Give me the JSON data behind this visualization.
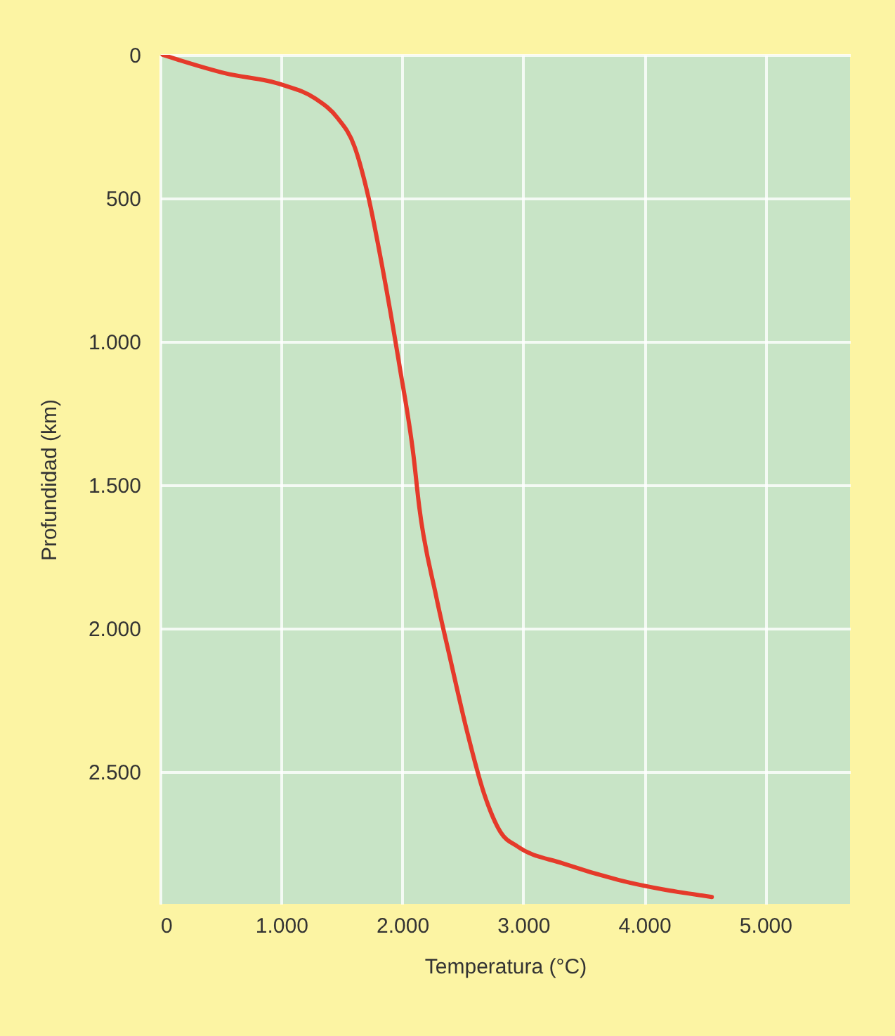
{
  "chart_data": {
    "type": "line",
    "xlabel": "Temperatura (°C)",
    "ylabel": "Profundidad (km)",
    "x": [
      20,
      535,
      1000,
      1280,
      1465,
      1605,
      1720,
      1840,
      1977,
      2093,
      2140,
      2280,
      2395,
      2535,
      2675,
      2814,
      2953,
      3326,
      3790,
      4558
    ],
    "series": [
      {
        "color": "#e53a2a",
        "values": [
          0,
          64,
          103,
          152,
          220,
          319,
          495,
          750,
          1083,
          1397,
          1574,
          1887,
          2103,
          2358,
          2574,
          2711,
          2760,
          2819,
          2877,
          2936
        ]
      }
    ],
    "xlim": [
      0,
      5700
    ],
    "ylim": [
      2960,
      0
    ],
    "xticks": [
      0,
      {
        "value": 1000,
        "label": "1.000"
      },
      {
        "value": 2000,
        "label": "2.000"
      },
      {
        "value": 3000,
        "label": "3.000"
      },
      {
        "value": 4000,
        "label": "4.000"
      },
      {
        "value": 5000,
        "label": "5.000"
      }
    ],
    "yticks": [
      0,
      500,
      {
        "value": 1000,
        "label": "1.000"
      },
      {
        "value": 1500,
        "label": "1.500"
      },
      {
        "value": 2000,
        "label": "2.000"
      },
      {
        "value": 2500,
        "label": "2.500"
      }
    ],
    "grid": true,
    "marker": "none",
    "line_style": "solid"
  }
}
